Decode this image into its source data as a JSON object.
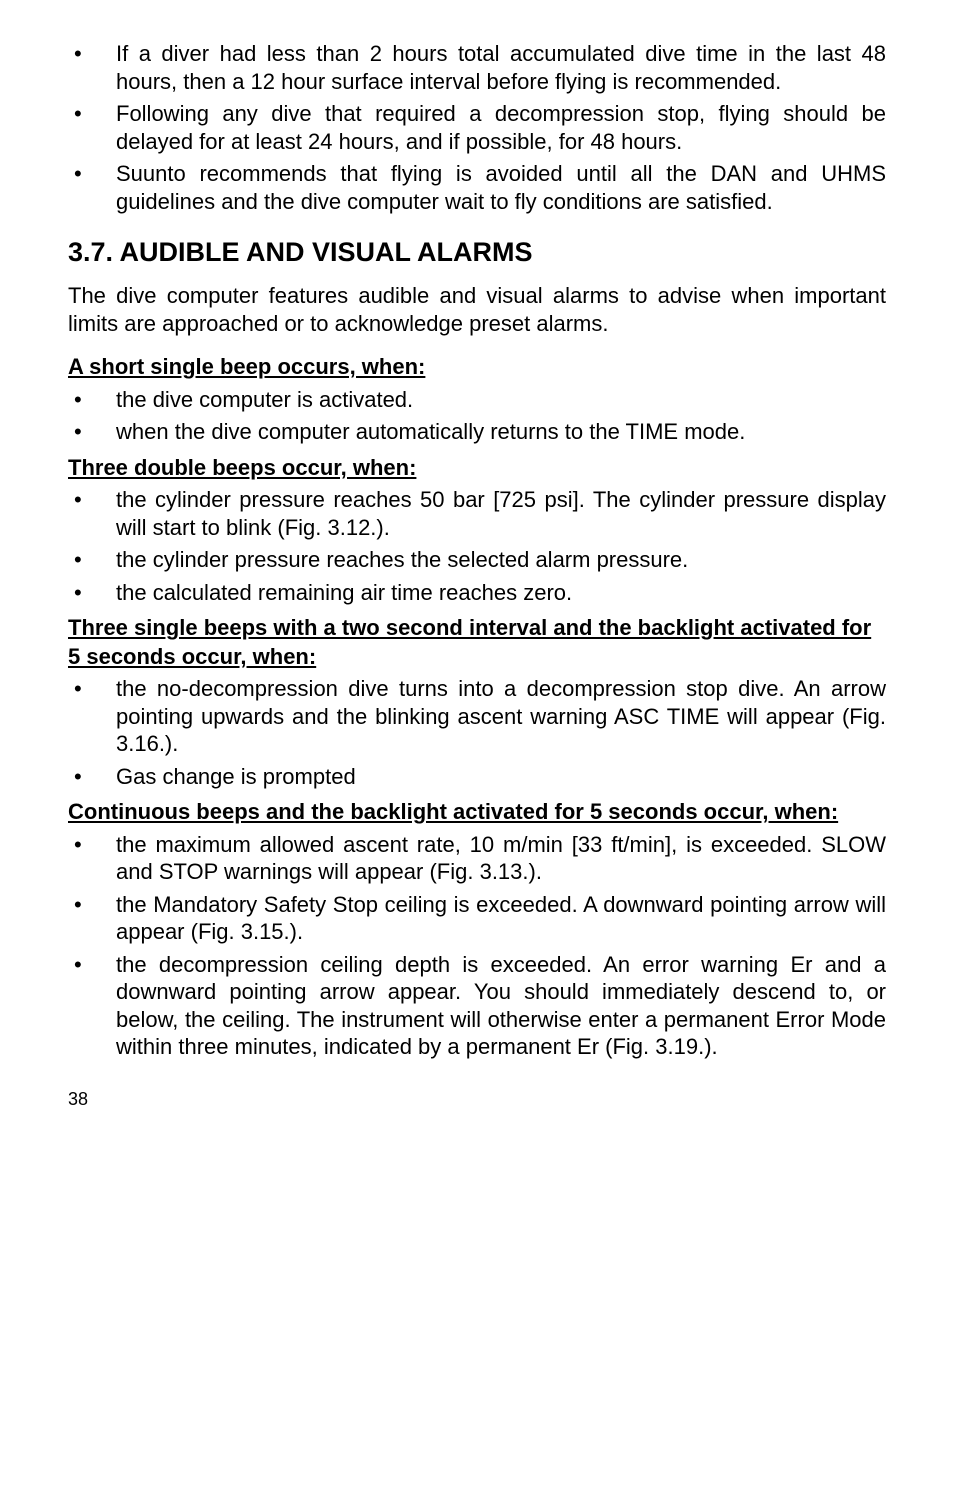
{
  "top_bullets": [
    "If a diver had less than 2 hours total accumulated dive time in the last 48 hours, then a 12 hour surface interval before flying is recommended.",
    "Following any dive that required a decompression stop, flying should be delayed for at least 24 hours, and if possible, for 48 hours.",
    "Suunto recommends that flying is avoided until all the DAN and UHMS guidelines and the dive computer wait to fly conditions are satisfied."
  ],
  "section_heading": "3.7.  AUDIBLE AND VISUAL ALARMS",
  "intro": "The dive computer features audible and visual alarms to advise when important limits are approached or to acknowledge preset alarms.",
  "sub1": "A short single beep occurs, when:",
  "sub1_bullets": [
    "the dive computer is activated.",
    "when the dive computer automatically returns to the TIME mode."
  ],
  "sub2": "Three double beeps occur, when:",
  "sub2_bullets": [
    "the cylinder pressure reaches 50 bar [725 psi]. The cylinder pressure display will start to blink (Fig. 3.12.).",
    "the cylinder pressure reaches the selected alarm pressure.",
    "the calculated remaining air time reaches zero."
  ],
  "sub3": "Three single beeps with a two second interval and the backlight activated for 5 seconds occur, when:",
  "sub3_bullets": [
    "the no-decompression dive turns into a decompression stop dive. An arrow pointing upwards and the blinking ascent warning ASC TIME will appear (Fig. 3.16.).",
    "Gas change is prompted"
  ],
  "sub4": "Continuous beeps and the backlight activated for 5 seconds occur, when:",
  "sub4_bullets": [
    "the maximum allowed ascent rate, 10 m/min [33 ft/min], is exceeded. SLOW and STOP warnings will appear (Fig. 3.13.).",
    "the Mandatory Safety Stop ceiling is exceeded. A downward pointing arrow will appear (Fig. 3.15.).",
    "the decompression ceiling depth is exceeded. An error warning Er and a downward pointing arrow appear. You should immediately descend to, or below, the ceiling. The instrument will otherwise enter a permanent Error Mode within three minutes, indicated by a permanent Er (Fig. 3.19.)."
  ],
  "page_number": "38"
}
